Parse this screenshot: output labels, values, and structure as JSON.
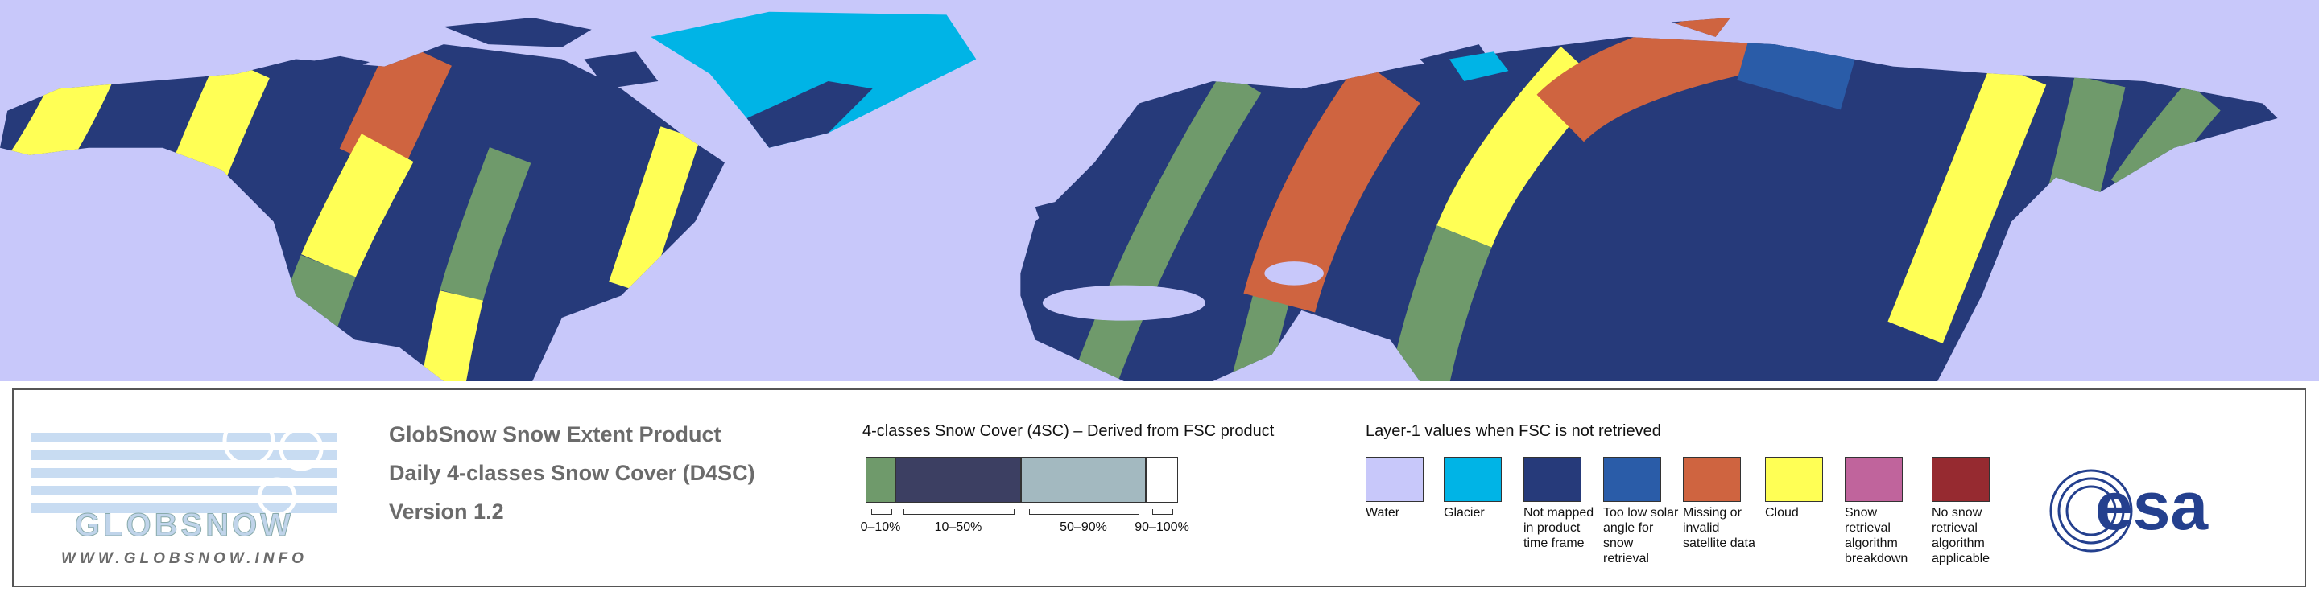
{
  "logo": {
    "name": "GLOBSNOW",
    "url": "WWW.GLOBSNOW.INFO"
  },
  "product": {
    "lines": [
      "GlobSnow Snow Extent Product",
      "Daily 4-classes Snow Cover (D4SC)",
      "Version 1.2"
    ]
  },
  "scale": {
    "title": "4-classes Snow Cover (4SC) – Derived from FSC product",
    "classes": [
      {
        "label": "0–10%",
        "color": "#6f9a6b"
      },
      {
        "label": "10–50%",
        "color": "#3c3f62"
      },
      {
        "label": "50–90%",
        "color": "#a3b9c0"
      },
      {
        "label": "90–100%",
        "color": "#ffffff"
      }
    ]
  },
  "layer1": {
    "title": "Layer-1 values when FSC is not retrieved",
    "items": [
      {
        "label": "Water",
        "color": "#c8c8fa"
      },
      {
        "label": "Glacier",
        "color": "#00b4e6"
      },
      {
        "label": "Not mapped in product time frame",
        "color": "#263a7a"
      },
      {
        "label": "Too low solar angle for snow retrieval",
        "color": "#2a5ca8"
      },
      {
        "label": "Missing or invalid satellite data",
        "color": "#cf6440"
      },
      {
        "label": "Cloud",
        "color": "#ffff55"
      },
      {
        "label": "Snow retrieval algorithm breakdown",
        "color": "#c0649c"
      },
      {
        "label": "No snow retrieval algorithm applicable",
        "color": "#962a30"
      }
    ]
  },
  "esa": {
    "label": "esa"
  }
}
